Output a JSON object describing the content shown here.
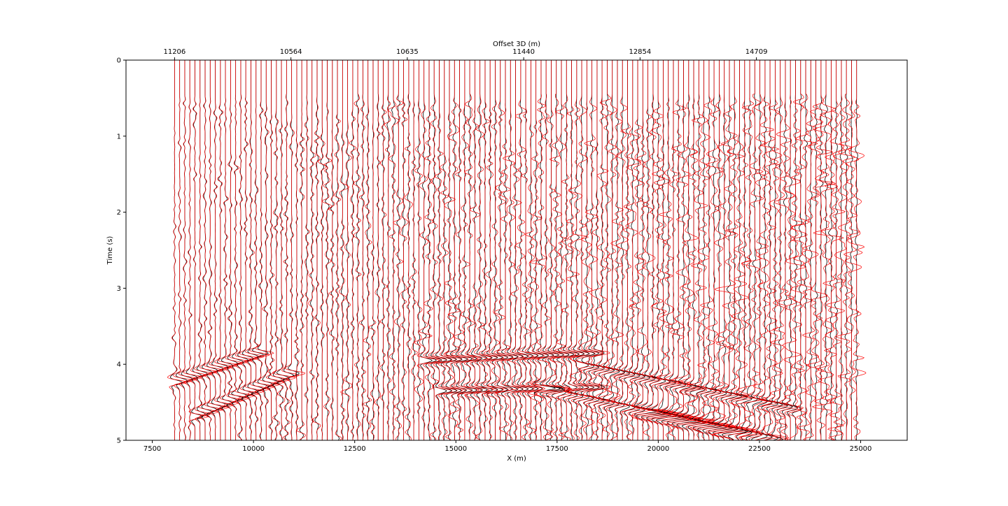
{
  "chart_data": {
    "type": "line",
    "chart_kind": "seismic-wiggle-traces",
    "xlabel": "X (m)",
    "ylabel": "Time (s)",
    "top_axis_label": "Offset 3D (m)",
    "xlim": [
      6850,
      26150
    ],
    "ylim": [
      5,
      0
    ],
    "y_inverted": true,
    "x_ticks": [
      7500,
      10000,
      12500,
      15000,
      17500,
      20000,
      22500,
      25000
    ],
    "x_tick_labels": [
      "7500",
      "10000",
      "12500",
      "15000",
      "17500",
      "20000",
      "22500",
      "25000"
    ],
    "y_ticks": [
      0,
      1,
      2,
      3,
      4,
      5
    ],
    "y_tick_labels": [
      "0",
      "1",
      "2",
      "3",
      "4",
      "5"
    ],
    "top_ticks_x": [
      8050,
      10925,
      13800,
      16675,
      19550,
      22425
    ],
    "top_tick_labels": [
      "11206",
      "10564",
      "10635",
      "11440",
      "12854",
      "14709"
    ],
    "trace_x_start": 8050,
    "trace_x_end": 24900,
    "trace_count": 135,
    "trace_time_start": 0,
    "trace_time_end": 5,
    "quiet_zone_end_time": 0.45,
    "series": [
      {
        "color": "#000000"
      },
      {
        "color": "#ff0000"
      }
    ],
    "events": [
      {
        "x_start": 7700,
        "x_end": 10200,
        "t_start": 4.3,
        "t_end": 3.85
      },
      {
        "x_start": 8500,
        "x_end": 11000,
        "t_start": 4.7,
        "t_end": 4.1
      },
      {
        "x_start": 14200,
        "x_end": 18500,
        "t_start": 3.95,
        "t_end": 3.85
      },
      {
        "x_start": 14500,
        "x_end": 18500,
        "t_start": 4.35,
        "t_end": 4.3
      },
      {
        "x_start": 17000,
        "x_end": 22000,
        "t_start": 4.3,
        "t_end": 4.9
      },
      {
        "x_start": 18000,
        "x_end": 23500,
        "t_start": 4.0,
        "t_end": 4.6
      },
      {
        "x_start": 19500,
        "x_end": 23000,
        "t_start": 4.6,
        "t_end": 5.0
      }
    ],
    "grid": false
  }
}
